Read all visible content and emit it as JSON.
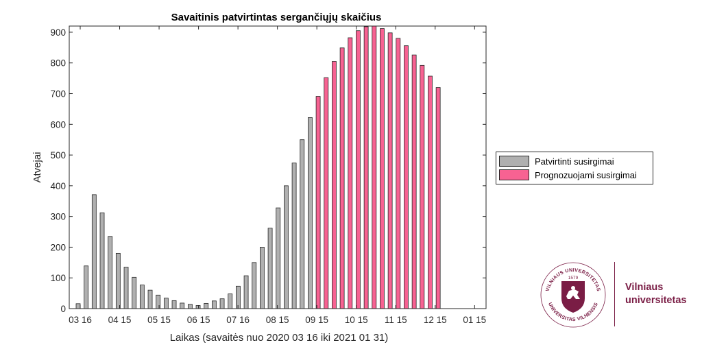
{
  "chart_data": {
    "type": "bar",
    "title": "Savaitinis patvirtintas sergančiųjų skaičius",
    "xlabel": "Laikas (savaitės nuo 2020 03 16 iki 2021 01 31)",
    "ylabel": "Atvejai",
    "ylim": [
      0,
      920
    ],
    "yticks": [
      0,
      100,
      200,
      300,
      400,
      500,
      600,
      700,
      800,
      900
    ],
    "xtick_labels": [
      "03 16",
      "04 15",
      "05 15",
      "06 15",
      "07 16",
      "08 15",
      "09 15",
      "10 15",
      "11 15",
      "12 15",
      "01 15"
    ],
    "legend_position": "outside-right",
    "series": [
      {
        "name": "Patvirtinti susirgimai",
        "color": "#b0b0b0",
        "values": [
          16,
          139,
          371,
          312,
          235,
          180,
          135,
          102,
          77,
          60,
          44,
          34,
          26,
          18,
          14,
          10,
          17,
          25,
          32,
          48,
          73,
          107,
          150,
          200,
          262,
          328,
          400,
          474,
          550,
          622
        ]
      },
      {
        "name": "Prognozuojami susirgimai",
        "color": "#f76292",
        "values": [
          691,
          752,
          805,
          849,
          882,
          905,
          918,
          920,
          912,
          898,
          880,
          856,
          826,
          792,
          757,
          720
        ]
      }
    ]
  },
  "logo": {
    "name_line1": "Vilniaus",
    "name_line2": "universitetas",
    "seal_year": "1579",
    "seal_top": "VILNIAUS UNIVERSITETAS",
    "seal_bottom": "UNIVERSITAS VILNENSIS",
    "color": "#7a1d45"
  }
}
